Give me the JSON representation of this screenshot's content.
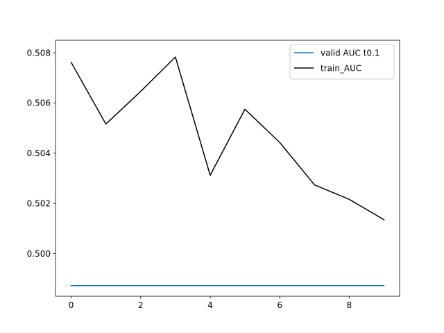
{
  "chart_data": {
    "type": "line",
    "title": "",
    "xlabel": "",
    "ylabel": "",
    "x": [
      0,
      1,
      2,
      3,
      4,
      5,
      6,
      7,
      8,
      9
    ],
    "xlim": [
      -0.45,
      9.45
    ],
    "ylim": [
      0.4983,
      0.5085
    ],
    "xticks": [
      0,
      2,
      4,
      6,
      8
    ],
    "yticks": [
      0.5,
      0.502,
      0.504,
      0.506,
      0.508
    ],
    "ytick_labels": [
      "0.500",
      "0.502",
      "0.504",
      "0.506",
      "0.508"
    ],
    "xtick_labels": [
      "0",
      "2",
      "4",
      "6",
      "8"
    ],
    "grid": false,
    "legend_position": "top-right",
    "series": [
      {
        "name": "valid AUC t0.1",
        "color": "#1f77b4",
        "values": [
          0.49872,
          0.49872,
          0.49872,
          0.49872,
          0.49872,
          0.49872,
          0.49872,
          0.49872,
          0.49872,
          0.49872
        ]
      },
      {
        "name": "train_AUC",
        "color": "#000000",
        "values": [
          0.50762,
          0.50516,
          0.50646,
          0.50783,
          0.50312,
          0.50575,
          0.50443,
          0.50274,
          0.50216,
          0.50135
        ]
      }
    ]
  }
}
